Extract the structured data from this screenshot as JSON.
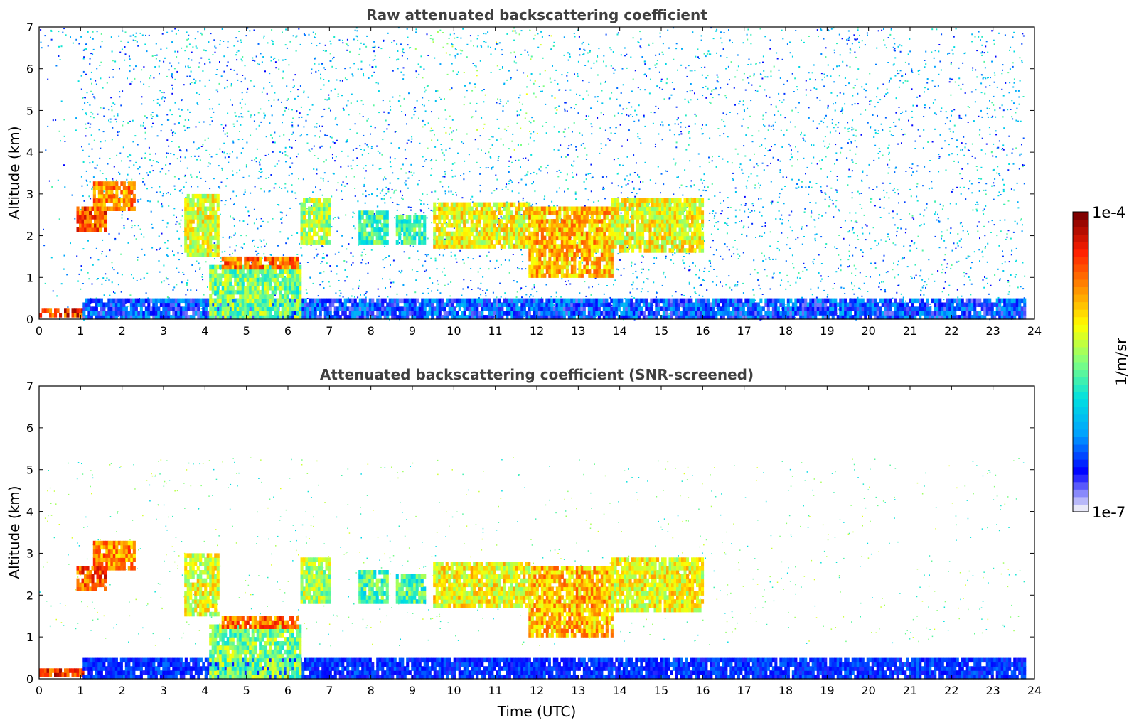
{
  "chart_data": [
    {
      "type": "heatmap",
      "title": "Raw attenuated backscattering coefficient",
      "xlabel": "",
      "ylabel": "Altitude (km)",
      "xlim": [
        0,
        24
      ],
      "ylim": [
        0,
        7
      ],
      "xticks": [
        "0",
        "1",
        "2",
        "3",
        "4",
        "5",
        "6",
        "7",
        "8",
        "9",
        "10",
        "11",
        "12",
        "13",
        "14",
        "15",
        "16",
        "17",
        "18",
        "19",
        "20",
        "21",
        "22",
        "23",
        "24"
      ],
      "yticks": [
        "0",
        "1",
        "2",
        "3",
        "4",
        "5",
        "6",
        "7"
      ],
      "data_end_time": 23.75,
      "noise_top_km": 7,
      "layers": [
        {
          "name": "surface",
          "start": 0,
          "end": 1.05,
          "bottom": 0.05,
          "top": 0.25,
          "intensity": 0.85
        },
        {
          "name": "boundary-layer",
          "start": 1.05,
          "end": 23.75,
          "bottom": 0,
          "top": 0.5,
          "intensity": 0.18
        },
        {
          "name": "aerosol-column",
          "start": 4.1,
          "end": 6.3,
          "bottom": 0,
          "top": 1.3,
          "intensity": 0.5
        },
        {
          "name": "cloud-base",
          "start": 4.4,
          "end": 6.2,
          "bottom": 1.2,
          "top": 1.5,
          "intensity": 0.78
        },
        {
          "name": "cloud-rise",
          "start": 3.5,
          "end": 4.3,
          "bottom": 1.5,
          "top": 3.0,
          "intensity": 0.6
        },
        {
          "name": "cloud-7",
          "start": 6.3,
          "end": 7.0,
          "bottom": 1.8,
          "top": 2.9,
          "intensity": 0.55
        },
        {
          "name": "cloud-8",
          "start": 7.7,
          "end": 8.4,
          "bottom": 1.8,
          "top": 2.6,
          "intensity": 0.45
        },
        {
          "name": "cloud-9",
          "start": 8.6,
          "end": 9.3,
          "bottom": 1.8,
          "top": 2.5,
          "intensity": 0.45
        },
        {
          "name": "cloud-10",
          "start": 9.5,
          "end": 11.8,
          "bottom": 1.7,
          "top": 2.8,
          "intensity": 0.62
        },
        {
          "name": "cloud-12",
          "start": 11.8,
          "end": 13.8,
          "bottom": 1.0,
          "top": 2.7,
          "intensity": 0.7
        },
        {
          "name": "cloud-14",
          "start": 13.8,
          "end": 16.0,
          "bottom": 1.6,
          "top": 2.9,
          "intensity": 0.62
        },
        {
          "name": "early-layer",
          "start": 1.3,
          "end": 2.3,
          "bottom": 2.6,
          "top": 3.3,
          "intensity": 0.75
        },
        {
          "name": "slant-layer",
          "start": 0.9,
          "end": 1.6,
          "bottom": 2.1,
          "top": 2.7,
          "intensity": 0.82
        }
      ]
    },
    {
      "type": "heatmap",
      "title": "Attenuated backscattering coefficient (SNR-screened)",
      "xlabel": "Time (UTC)",
      "ylabel": "Altitude (km)",
      "xlim": [
        0,
        24
      ],
      "ylim": [
        0,
        7
      ],
      "xticks": [
        "0",
        "1",
        "2",
        "3",
        "4",
        "5",
        "6",
        "7",
        "8",
        "9",
        "10",
        "11",
        "12",
        "13",
        "14",
        "15",
        "16",
        "17",
        "18",
        "19",
        "20",
        "21",
        "22",
        "23",
        "24"
      ],
      "yticks": [
        "0",
        "1",
        "2",
        "3",
        "4",
        "5",
        "6",
        "7"
      ],
      "data_end_time": 23.75,
      "screened": true
    }
  ],
  "colorbar": {
    "unit": "1/m/sr",
    "max_label": "1e-4",
    "min_label": "1e-7",
    "colors": [
      "#e8e8f8",
      "#0000ff",
      "#00a0ff",
      "#00e0e0",
      "#80ff80",
      "#ffff00",
      "#ff9000",
      "#ff2000",
      "#800000"
    ]
  }
}
